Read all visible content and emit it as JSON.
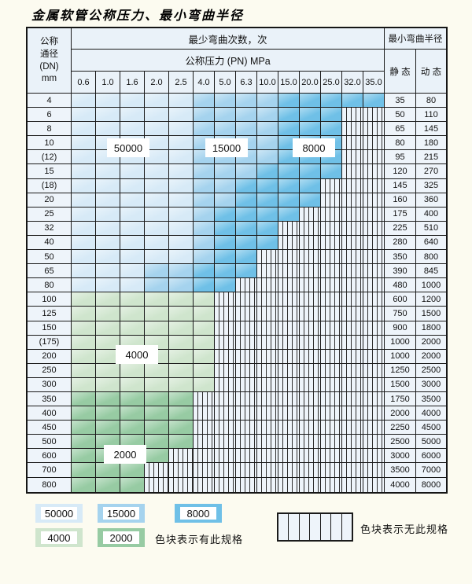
{
  "title": "金属软管公称压力、最小弯曲半径",
  "table": {
    "header": {
      "dn_lines": [
        "公称",
        "通径",
        "(DN)",
        "mm"
      ],
      "cycles_title": "最少弯曲次数，次",
      "pressure_title": "公称压力 (PN) MPa",
      "pn_values": [
        "0.6",
        "1.0",
        "1.6",
        "2.0",
        "2.5",
        "4.0",
        "5.0",
        "6.3",
        "10.0",
        "15.0",
        "20.0",
        "25.0",
        "32.0",
        "35.0"
      ],
      "radius_title": "最小弯曲半径",
      "static_label": "静 态",
      "dynamic_label": "动 态"
    },
    "cell_legend": {
      "a": "50000",
      "b": "15000",
      "c": "8000",
      "d": "4000",
      "e": "2000",
      "h": "无此规格"
    },
    "rows": [
      {
        "dn": "4",
        "cells": "aaaaabbbbccccc",
        "static": "35",
        "dynamic": "80"
      },
      {
        "dn": "6",
        "cells": "aaaaabbbbccchh",
        "static": "50",
        "dynamic": "110"
      },
      {
        "dn": "8",
        "cells": "aaaaabbbbccchh",
        "static": "65",
        "dynamic": "145"
      },
      {
        "dn": "10",
        "cells": "aaaaabbbbccchh",
        "static": "80",
        "dynamic": "180"
      },
      {
        "dn": "(12)",
        "cells": "aaaaabbbbccchh",
        "static": "95",
        "dynamic": "215"
      },
      {
        "dn": "15",
        "cells": "aaaaabbbcccchh",
        "static": "120",
        "dynamic": "270"
      },
      {
        "dn": "(18)",
        "cells": "aaaaabbcccchhh",
        "static": "145",
        "dynamic": "325"
      },
      {
        "dn": "20",
        "cells": "aaaaabbcccchhh",
        "static": "160",
        "dynamic": "360"
      },
      {
        "dn": "25",
        "cells": "aaaaabcccchhhh",
        "static": "175",
        "dynamic": "400"
      },
      {
        "dn": "32",
        "cells": "aaaaabccchhhhh",
        "static": "225",
        "dynamic": "510"
      },
      {
        "dn": "40",
        "cells": "aaaaabccchhhhh",
        "static": "280",
        "dynamic": "640"
      },
      {
        "dn": "50",
        "cells": "aaaaabcchhhhhh",
        "static": "350",
        "dynamic": "800"
      },
      {
        "dn": "65",
        "cells": "aaabbccchhhhhh",
        "static": "390",
        "dynamic": "845"
      },
      {
        "dn": "80",
        "cells": "aaabbcchhhhhhh",
        "static": "480",
        "dynamic": "1000"
      },
      {
        "dn": "100",
        "cells": "ddddddhhhhhhhh",
        "static": "600",
        "dynamic": "1200"
      },
      {
        "dn": "125",
        "cells": "ddddddhhhhhhhh",
        "static": "750",
        "dynamic": "1500"
      },
      {
        "dn": "150",
        "cells": "ddddddhhhhhhhh",
        "static": "900",
        "dynamic": "1800"
      },
      {
        "dn": "(175)",
        "cells": "ddddddhhhhhhhh",
        "static": "1000",
        "dynamic": "2000"
      },
      {
        "dn": "200",
        "cells": "ddddddhhhhhhhh",
        "static": "1000",
        "dynamic": "2000"
      },
      {
        "dn": "250",
        "cells": "ddddddhhhhhhhh",
        "static": "1250",
        "dynamic": "2500"
      },
      {
        "dn": "300",
        "cells": "ddddddhhhhhhhh",
        "static": "1500",
        "dynamic": "3000"
      },
      {
        "dn": "350",
        "cells": "eeeeehhhhhhhhh",
        "static": "1750",
        "dynamic": "3500"
      },
      {
        "dn": "400",
        "cells": "eeeeehhhhhhhhh",
        "static": "2000",
        "dynamic": "4000"
      },
      {
        "dn": "450",
        "cells": "eeeeehhhhhhhhh",
        "static": "2250",
        "dynamic": "4500"
      },
      {
        "dn": "500",
        "cells": "eeeeehhhhhhhhh",
        "static": "2500",
        "dynamic": "5000"
      },
      {
        "dn": "600",
        "cells": "eeeehhhhhhhhhh",
        "static": "3000",
        "dynamic": "6000"
      },
      {
        "dn": "700",
        "cells": "eeehhhhhhhhhhh",
        "static": "3500",
        "dynamic": "7000"
      },
      {
        "dn": "800",
        "cells": "eeehhhhhhhhhhh",
        "static": "4000",
        "dynamic": "8000"
      }
    ]
  },
  "overlay_labels": [
    "50000",
    "15000",
    "8000",
    "4000",
    "2000"
  ],
  "colors": {
    "c50000": "#d7eaf7",
    "c15000": "#a5d3ee",
    "c8000": "#6fc0e7",
    "c4000": "#cfe5cd",
    "c2000": "#97cba3",
    "hatch_bg": "#eef4fa",
    "hatch_line": "#2e2e2e"
  },
  "legend": {
    "blue_items": [
      {
        "label": "50000",
        "color": "#d7eaf7"
      },
      {
        "label": "15000",
        "color": "#a5d3ee"
      },
      {
        "label": "8000",
        "color": "#6fc0e7"
      }
    ],
    "green_items": [
      {
        "label": "4000",
        "color": "#cfe5cd"
      },
      {
        "label": "2000",
        "color": "#97cba3"
      }
    ],
    "available_note": "色块表示有此规格",
    "unavailable_note": "色块表示无此规格"
  }
}
